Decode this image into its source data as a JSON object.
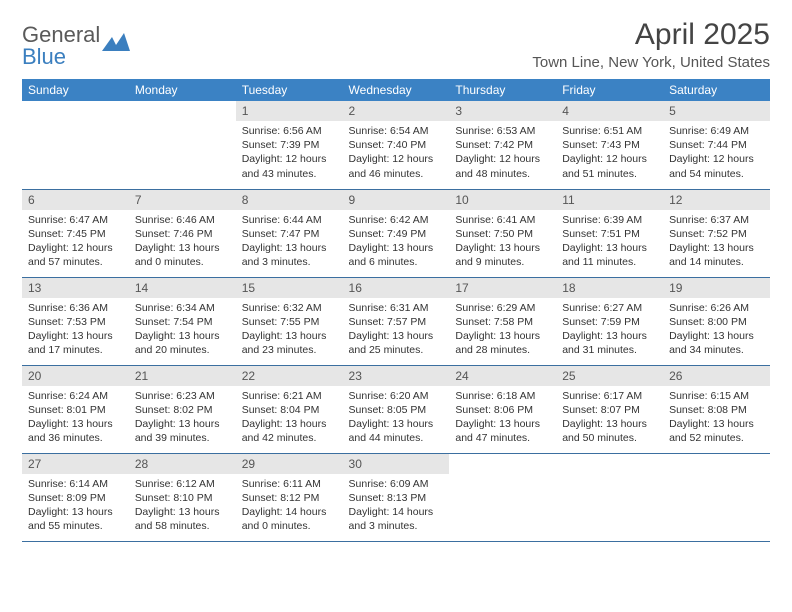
{
  "brand": {
    "name_gray": "General",
    "name_blue": "Blue"
  },
  "title": "April 2025",
  "location": "Town Line, New York, United States",
  "day_headers": [
    "Sunday",
    "Monday",
    "Tuesday",
    "Wednesday",
    "Thursday",
    "Friday",
    "Saturday"
  ],
  "colors": {
    "header_bg": "#3b82c4",
    "header_text": "#ffffff",
    "daynum_bg": "#e6e6e6",
    "row_border": "#3b6fa0",
    "logo_blue": "#3b7fbf",
    "text": "#333333"
  },
  "weeks": [
    [
      {
        "day": "",
        "sunrise": "",
        "sunset": "",
        "daylight": ""
      },
      {
        "day": "",
        "sunrise": "",
        "sunset": "",
        "daylight": ""
      },
      {
        "day": "1",
        "sunrise": "Sunrise: 6:56 AM",
        "sunset": "Sunset: 7:39 PM",
        "daylight": "Daylight: 12 hours and 43 minutes."
      },
      {
        "day": "2",
        "sunrise": "Sunrise: 6:54 AM",
        "sunset": "Sunset: 7:40 PM",
        "daylight": "Daylight: 12 hours and 46 minutes."
      },
      {
        "day": "3",
        "sunrise": "Sunrise: 6:53 AM",
        "sunset": "Sunset: 7:42 PM",
        "daylight": "Daylight: 12 hours and 48 minutes."
      },
      {
        "day": "4",
        "sunrise": "Sunrise: 6:51 AM",
        "sunset": "Sunset: 7:43 PM",
        "daylight": "Daylight: 12 hours and 51 minutes."
      },
      {
        "day": "5",
        "sunrise": "Sunrise: 6:49 AM",
        "sunset": "Sunset: 7:44 PM",
        "daylight": "Daylight: 12 hours and 54 minutes."
      }
    ],
    [
      {
        "day": "6",
        "sunrise": "Sunrise: 6:47 AM",
        "sunset": "Sunset: 7:45 PM",
        "daylight": "Daylight: 12 hours and 57 minutes."
      },
      {
        "day": "7",
        "sunrise": "Sunrise: 6:46 AM",
        "sunset": "Sunset: 7:46 PM",
        "daylight": "Daylight: 13 hours and 0 minutes."
      },
      {
        "day": "8",
        "sunrise": "Sunrise: 6:44 AM",
        "sunset": "Sunset: 7:47 PM",
        "daylight": "Daylight: 13 hours and 3 minutes."
      },
      {
        "day": "9",
        "sunrise": "Sunrise: 6:42 AM",
        "sunset": "Sunset: 7:49 PM",
        "daylight": "Daylight: 13 hours and 6 minutes."
      },
      {
        "day": "10",
        "sunrise": "Sunrise: 6:41 AM",
        "sunset": "Sunset: 7:50 PM",
        "daylight": "Daylight: 13 hours and 9 minutes."
      },
      {
        "day": "11",
        "sunrise": "Sunrise: 6:39 AM",
        "sunset": "Sunset: 7:51 PM",
        "daylight": "Daylight: 13 hours and 11 minutes."
      },
      {
        "day": "12",
        "sunrise": "Sunrise: 6:37 AM",
        "sunset": "Sunset: 7:52 PM",
        "daylight": "Daylight: 13 hours and 14 minutes."
      }
    ],
    [
      {
        "day": "13",
        "sunrise": "Sunrise: 6:36 AM",
        "sunset": "Sunset: 7:53 PM",
        "daylight": "Daylight: 13 hours and 17 minutes."
      },
      {
        "day": "14",
        "sunrise": "Sunrise: 6:34 AM",
        "sunset": "Sunset: 7:54 PM",
        "daylight": "Daylight: 13 hours and 20 minutes."
      },
      {
        "day": "15",
        "sunrise": "Sunrise: 6:32 AM",
        "sunset": "Sunset: 7:55 PM",
        "daylight": "Daylight: 13 hours and 23 minutes."
      },
      {
        "day": "16",
        "sunrise": "Sunrise: 6:31 AM",
        "sunset": "Sunset: 7:57 PM",
        "daylight": "Daylight: 13 hours and 25 minutes."
      },
      {
        "day": "17",
        "sunrise": "Sunrise: 6:29 AM",
        "sunset": "Sunset: 7:58 PM",
        "daylight": "Daylight: 13 hours and 28 minutes."
      },
      {
        "day": "18",
        "sunrise": "Sunrise: 6:27 AM",
        "sunset": "Sunset: 7:59 PM",
        "daylight": "Daylight: 13 hours and 31 minutes."
      },
      {
        "day": "19",
        "sunrise": "Sunrise: 6:26 AM",
        "sunset": "Sunset: 8:00 PM",
        "daylight": "Daylight: 13 hours and 34 minutes."
      }
    ],
    [
      {
        "day": "20",
        "sunrise": "Sunrise: 6:24 AM",
        "sunset": "Sunset: 8:01 PM",
        "daylight": "Daylight: 13 hours and 36 minutes."
      },
      {
        "day": "21",
        "sunrise": "Sunrise: 6:23 AM",
        "sunset": "Sunset: 8:02 PM",
        "daylight": "Daylight: 13 hours and 39 minutes."
      },
      {
        "day": "22",
        "sunrise": "Sunrise: 6:21 AM",
        "sunset": "Sunset: 8:04 PM",
        "daylight": "Daylight: 13 hours and 42 minutes."
      },
      {
        "day": "23",
        "sunrise": "Sunrise: 6:20 AM",
        "sunset": "Sunset: 8:05 PM",
        "daylight": "Daylight: 13 hours and 44 minutes."
      },
      {
        "day": "24",
        "sunrise": "Sunrise: 6:18 AM",
        "sunset": "Sunset: 8:06 PM",
        "daylight": "Daylight: 13 hours and 47 minutes."
      },
      {
        "day": "25",
        "sunrise": "Sunrise: 6:17 AM",
        "sunset": "Sunset: 8:07 PM",
        "daylight": "Daylight: 13 hours and 50 minutes."
      },
      {
        "day": "26",
        "sunrise": "Sunrise: 6:15 AM",
        "sunset": "Sunset: 8:08 PM",
        "daylight": "Daylight: 13 hours and 52 minutes."
      }
    ],
    [
      {
        "day": "27",
        "sunrise": "Sunrise: 6:14 AM",
        "sunset": "Sunset: 8:09 PM",
        "daylight": "Daylight: 13 hours and 55 minutes."
      },
      {
        "day": "28",
        "sunrise": "Sunrise: 6:12 AM",
        "sunset": "Sunset: 8:10 PM",
        "daylight": "Daylight: 13 hours and 58 minutes."
      },
      {
        "day": "29",
        "sunrise": "Sunrise: 6:11 AM",
        "sunset": "Sunset: 8:12 PM",
        "daylight": "Daylight: 14 hours and 0 minutes."
      },
      {
        "day": "30",
        "sunrise": "Sunrise: 6:09 AM",
        "sunset": "Sunset: 8:13 PM",
        "daylight": "Daylight: 14 hours and 3 minutes."
      },
      {
        "day": "",
        "sunrise": "",
        "sunset": "",
        "daylight": ""
      },
      {
        "day": "",
        "sunrise": "",
        "sunset": "",
        "daylight": ""
      },
      {
        "day": "",
        "sunrise": "",
        "sunset": "",
        "daylight": ""
      }
    ]
  ]
}
